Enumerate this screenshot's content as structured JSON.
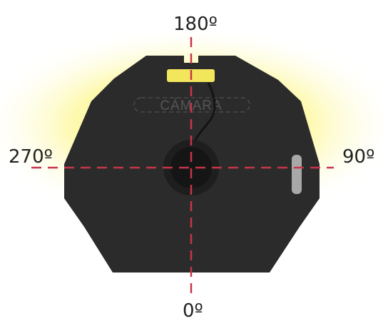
{
  "device": {
    "camera_label": "CÁMARA"
  },
  "orientation_labels": {
    "top": "180º",
    "bottom": "0º",
    "left": "270º",
    "right": "90º"
  },
  "colors": {
    "body": "#2b2b2b",
    "lens_ring": "#1e1e1e",
    "lens": "#151515",
    "led": "#f2e65c",
    "glow": "#fbf57e",
    "crosshair": "#c8344a",
    "side_button": "#a8a8a8",
    "camera_outline": "#4a4a4a"
  }
}
